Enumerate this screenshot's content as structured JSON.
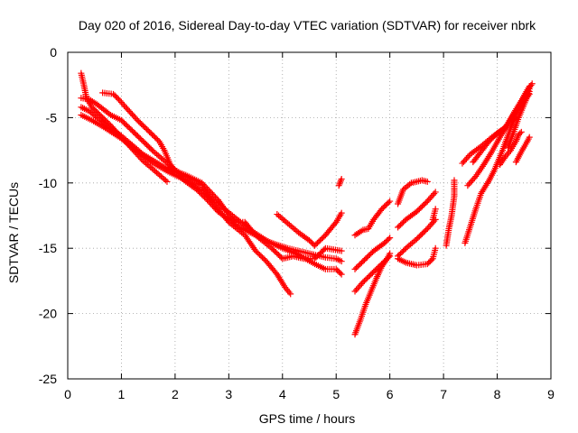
{
  "chart_data": {
    "type": "scatter",
    "title": "Day 020 of 2016, Sidereal Day-to-day VTEC variation (SDTVAR) for receiver nbrk",
    "xlabel": "GPS time / hours",
    "ylabel": "SDTVAR / TECUs",
    "xlim": [
      0,
      9
    ],
    "ylim": [
      -25,
      0
    ],
    "xticks": [
      "0",
      "1",
      "2",
      "3",
      "4",
      "5",
      "6",
      "7",
      "8",
      "9"
    ],
    "yticks": [
      "0",
      "-5",
      "-10",
      "-15",
      "-20",
      "-25"
    ],
    "grid": true,
    "marker": "+",
    "marker_color": "#ff0000",
    "series": [
      {
        "points": [
          [
            0.25,
            -1.6
          ],
          [
            0.3,
            -2.5
          ],
          [
            0.35,
            -3.5
          ],
          [
            0.45,
            -4.2
          ],
          [
            0.6,
            -4.8
          ],
          [
            0.8,
            -5.6
          ],
          [
            1.0,
            -6.5
          ],
          [
            1.2,
            -7.4
          ],
          [
            1.4,
            -8.3
          ],
          [
            1.6,
            -9.0
          ],
          [
            1.85,
            -9.9
          ]
        ]
      },
      {
        "points": [
          [
            0.25,
            -3.5
          ],
          [
            0.4,
            -3.6
          ],
          [
            0.55,
            -4.0
          ],
          [
            0.8,
            -4.8
          ],
          [
            1.0,
            -5.2
          ],
          [
            1.2,
            -6.0
          ],
          [
            1.4,
            -6.8
          ],
          [
            1.6,
            -7.6
          ],
          [
            1.8,
            -8.3
          ],
          [
            2.0,
            -9.0
          ],
          [
            2.2,
            -9.5
          ],
          [
            2.5,
            -10.2
          ],
          [
            2.7,
            -11.5
          ],
          [
            3.0,
            -13.0
          ],
          [
            3.3,
            -14.0
          ],
          [
            3.5,
            -15.2
          ],
          [
            3.7,
            -16.0
          ],
          [
            3.9,
            -17.0
          ],
          [
            4.05,
            -18.0
          ],
          [
            4.15,
            -18.5
          ]
        ]
      },
      {
        "points": [
          [
            0.25,
            -4.2
          ],
          [
            0.4,
            -4.5
          ],
          [
            0.6,
            -5.2
          ],
          [
            0.8,
            -5.8
          ],
          [
            1.0,
            -6.4
          ],
          [
            1.2,
            -7.1
          ],
          [
            1.4,
            -7.8
          ],
          [
            1.6,
            -8.3
          ],
          [
            1.8,
            -8.8
          ],
          [
            2.0,
            -9.2
          ],
          [
            2.2,
            -9.9
          ],
          [
            2.4,
            -10.5
          ],
          [
            2.6,
            -11.3
          ],
          [
            2.8,
            -12.2
          ],
          [
            3.0,
            -12.8
          ],
          [
            3.2,
            -13.4
          ],
          [
            3.5,
            -14.0
          ],
          [
            3.8,
            -14.6
          ],
          [
            4.1,
            -15.0
          ],
          [
            4.4,
            -15.3
          ],
          [
            4.8,
            -15.7
          ],
          [
            5.0,
            -15.8
          ],
          [
            5.1,
            -16.0
          ]
        ]
      },
      {
        "points": [
          [
            0.25,
            -4.8
          ],
          [
            0.45,
            -5.2
          ],
          [
            0.7,
            -5.8
          ],
          [
            1.0,
            -6.6
          ],
          [
            1.3,
            -7.6
          ],
          [
            1.6,
            -8.5
          ],
          [
            1.9,
            -9.2
          ],
          [
            2.2,
            -9.8
          ],
          [
            2.5,
            -10.6
          ],
          [
            2.8,
            -11.6
          ],
          [
            3.1,
            -12.6
          ],
          [
            3.4,
            -13.6
          ],
          [
            3.7,
            -14.4
          ],
          [
            4.0,
            -15.0
          ],
          [
            4.3,
            -15.5
          ],
          [
            4.6,
            -16.2
          ],
          [
            4.8,
            -16.6
          ],
          [
            5.0,
            -16.6
          ],
          [
            5.1,
            -17.0
          ]
        ]
      },
      {
        "points": [
          [
            0.65,
            -3.1
          ],
          [
            0.85,
            -3.2
          ],
          [
            0.95,
            -3.6
          ],
          [
            1.1,
            -4.3
          ],
          [
            1.3,
            -5.2
          ],
          [
            1.5,
            -6.0
          ],
          [
            1.7,
            -6.8
          ],
          [
            1.8,
            -7.5
          ],
          [
            1.9,
            -8.5
          ],
          [
            2.0,
            -9.1
          ],
          [
            2.2,
            -9.4
          ],
          [
            2.5,
            -10.0
          ],
          [
            2.8,
            -11.3
          ],
          [
            3.1,
            -13.0
          ],
          [
            3.3,
            -13.0
          ],
          [
            3.5,
            -14.0
          ],
          [
            3.8,
            -15.0
          ],
          [
            4.0,
            -15.8
          ],
          [
            4.2,
            -15.6
          ],
          [
            4.4,
            -15.8
          ],
          [
            4.6,
            -15.8
          ],
          [
            4.8,
            -15.0
          ],
          [
            5.1,
            -15.2
          ]
        ]
      },
      {
        "points": [
          [
            3.9,
            -12.4
          ],
          [
            4.1,
            -13.1
          ],
          [
            4.3,
            -13.8
          ],
          [
            4.5,
            -14.4
          ],
          [
            4.6,
            -14.8
          ],
          [
            4.8,
            -14.0
          ],
          [
            5.0,
            -13.0
          ],
          [
            5.1,
            -12.3
          ]
        ]
      },
      {
        "points": [
          [
            5.35,
            -21.6
          ],
          [
            5.45,
            -20.5
          ],
          [
            5.55,
            -19.3
          ],
          [
            5.65,
            -18.3
          ],
          [
            5.75,
            -17.3
          ],
          [
            5.85,
            -16.4
          ],
          [
            5.95,
            -15.8
          ],
          [
            6.0,
            -15.4
          ]
        ]
      },
      {
        "points": [
          [
            5.35,
            -18.3
          ],
          [
            5.5,
            -17.6
          ],
          [
            5.7,
            -16.8
          ],
          [
            5.9,
            -16.0
          ],
          [
            6.0,
            -15.6
          ]
        ]
      },
      {
        "points": [
          [
            5.35,
            -16.6
          ],
          [
            5.5,
            -16.0
          ],
          [
            5.7,
            -15.2
          ],
          [
            5.9,
            -14.6
          ],
          [
            6.0,
            -14.2
          ]
        ]
      },
      {
        "points": [
          [
            5.35,
            -14.0
          ],
          [
            5.5,
            -13.6
          ],
          [
            5.6,
            -13.5
          ],
          [
            5.7,
            -12.8
          ],
          [
            5.85,
            -12.0
          ],
          [
            6.0,
            -11.4
          ]
        ]
      },
      {
        "points": [
          [
            6.15,
            -15.6
          ],
          [
            6.3,
            -15.0
          ],
          [
            6.5,
            -14.3
          ],
          [
            6.7,
            -13.5
          ],
          [
            6.85,
            -12.8
          ]
        ]
      },
      {
        "points": [
          [
            6.15,
            -13.4
          ],
          [
            6.3,
            -12.8
          ],
          [
            6.5,
            -12.2
          ],
          [
            6.7,
            -11.4
          ],
          [
            6.85,
            -10.7
          ]
        ]
      },
      {
        "points": [
          [
            6.15,
            -11.6
          ],
          [
            6.25,
            -10.5
          ],
          [
            6.4,
            -10.0
          ],
          [
            6.6,
            -9.8
          ],
          [
            6.7,
            -9.9
          ]
        ]
      },
      {
        "points": [
          [
            6.15,
            -15.8
          ],
          [
            6.3,
            -16.1
          ],
          [
            6.5,
            -16.3
          ],
          [
            6.7,
            -16.2
          ],
          [
            6.8,
            -15.8
          ],
          [
            6.85,
            -15.0
          ]
        ]
      },
      {
        "points": [
          [
            5.05,
            -10.2
          ],
          [
            5.1,
            -9.7
          ]
        ]
      },
      {
        "points": [
          [
            6.8,
            -12.8
          ],
          [
            6.85,
            -12.0
          ]
        ]
      },
      {
        "points": [
          [
            7.05,
            -14.8
          ],
          [
            7.1,
            -13.5
          ],
          [
            7.15,
            -12.5
          ],
          [
            7.2,
            -11.0
          ],
          [
            7.2,
            -9.8
          ]
        ]
      },
      {
        "points": [
          [
            7.35,
            -8.5
          ],
          [
            7.5,
            -7.8
          ],
          [
            7.7,
            -7.2
          ],
          [
            7.9,
            -6.5
          ],
          [
            8.1,
            -5.9
          ],
          [
            8.2,
            -5.5
          ],
          [
            8.3,
            -4.8
          ],
          [
            8.45,
            -4.0
          ],
          [
            8.6,
            -3.2
          ]
        ]
      },
      {
        "points": [
          [
            7.4,
            -14.6
          ],
          [
            7.5,
            -13.3
          ],
          [
            7.6,
            -12.0
          ],
          [
            7.7,
            -10.8
          ],
          [
            7.85,
            -9.8
          ],
          [
            7.95,
            -9.0
          ],
          [
            8.1,
            -7.5
          ],
          [
            8.25,
            -5.8
          ],
          [
            8.4,
            -4.2
          ],
          [
            8.55,
            -3.0
          ],
          [
            8.65,
            -2.4
          ]
        ]
      },
      {
        "points": [
          [
            7.45,
            -10.2
          ],
          [
            7.6,
            -9.5
          ],
          [
            7.75,
            -8.6
          ],
          [
            7.9,
            -7.6
          ],
          [
            8.05,
            -6.5
          ],
          [
            8.2,
            -5.5
          ],
          [
            8.35,
            -4.5
          ],
          [
            8.5,
            -3.5
          ],
          [
            8.6,
            -2.8
          ]
        ]
      },
      {
        "points": [
          [
            7.55,
            -8.4
          ],
          [
            7.7,
            -7.6
          ],
          [
            7.85,
            -6.8
          ],
          [
            8.0,
            -6.2
          ],
          [
            8.15,
            -5.8
          ],
          [
            8.3,
            -4.7
          ],
          [
            8.45,
            -3.7
          ],
          [
            8.6,
            -2.6
          ]
        ]
      },
      {
        "points": [
          [
            8.05,
            -8.6
          ],
          [
            8.15,
            -8.0
          ],
          [
            8.25,
            -7.5
          ],
          [
            8.35,
            -6.8
          ],
          [
            8.4,
            -6.3
          ],
          [
            8.45,
            -6.1
          ]
        ]
      },
      {
        "points": [
          [
            8.2,
            -7.3
          ],
          [
            8.3,
            -6.2
          ],
          [
            8.4,
            -5.0
          ],
          [
            8.5,
            -4.0
          ],
          [
            8.6,
            -3.0
          ]
        ]
      },
      {
        "points": [
          [
            8.35,
            -8.4
          ],
          [
            8.45,
            -7.6
          ],
          [
            8.55,
            -6.9
          ],
          [
            8.6,
            -6.5
          ]
        ]
      }
    ]
  }
}
